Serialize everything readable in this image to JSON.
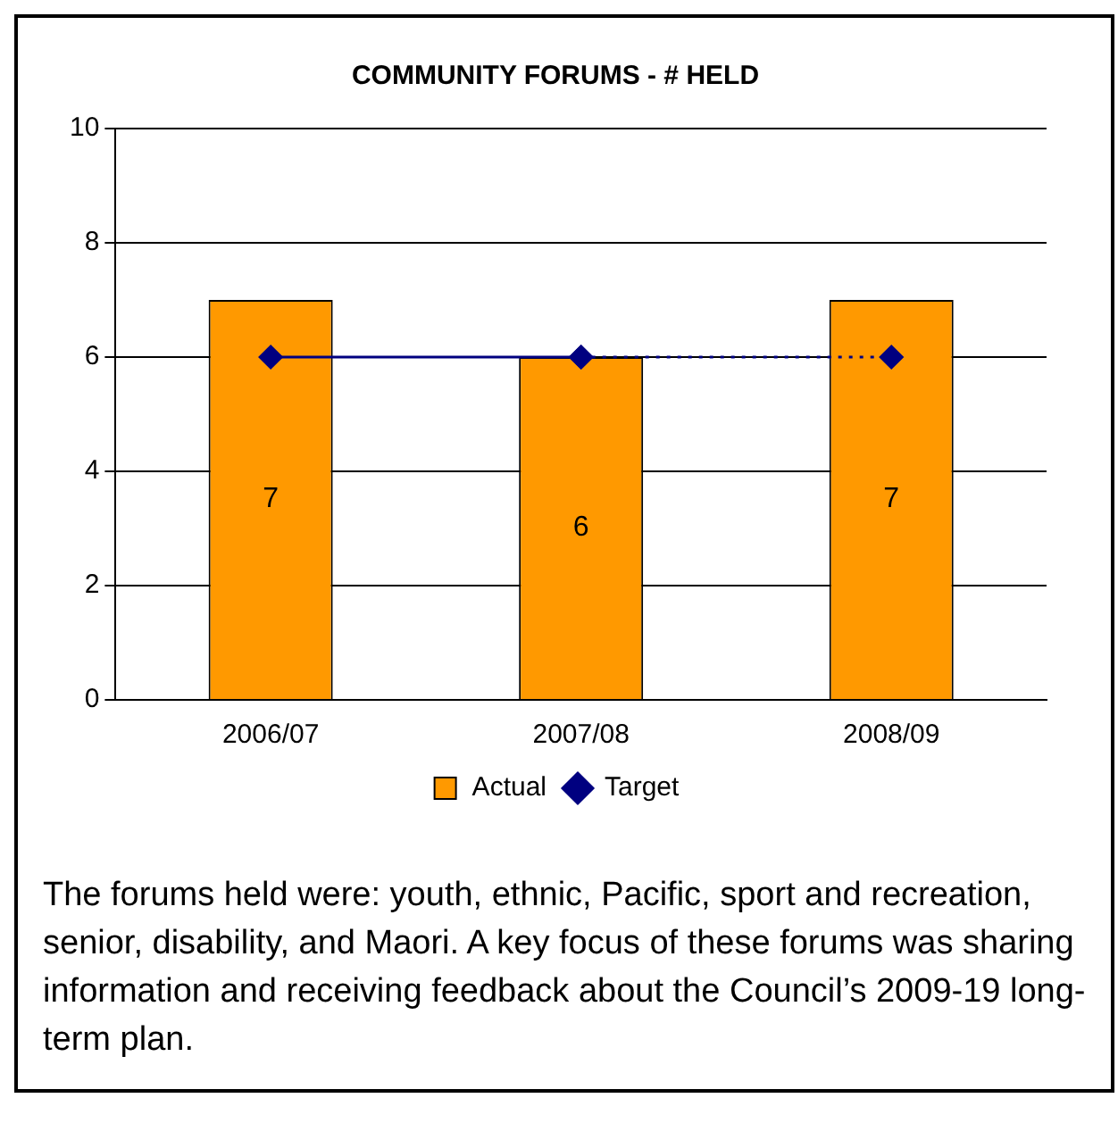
{
  "chart_data": {
    "type": "bar",
    "title": "COMMUNITY FORUMS - # HELD",
    "categories": [
      "2006/07",
      "2007/08",
      "2008/09"
    ],
    "series": [
      {
        "name": "Actual",
        "color": "#ff9900",
        "values": [
          7,
          6,
          7
        ],
        "value_labels": [
          "7",
          "6",
          "7"
        ]
      },
      {
        "name": "Target",
        "type": "line",
        "color": "#000080",
        "values": [
          6,
          6,
          null
        ],
        "marker": "diamond",
        "line_style": "solid"
      },
      {
        "type": "line",
        "color": "#000080",
        "values": [
          null,
          6,
          6
        ],
        "marker": "diamond",
        "line_style": "dotted"
      }
    ],
    "ylim": [
      0,
      10
    ],
    "yticks": [
      0,
      2,
      4,
      6,
      8,
      10
    ],
    "grid": "y",
    "legend": "bottom",
    "annotations": [
      "The forums held were: youth, ethnic, Pacific, sport and recreation, senior, disability, and Maori. A key focus of these forums was sharing information and receiving feedback about the Council’s 2009-19 long-term plan."
    ]
  }
}
